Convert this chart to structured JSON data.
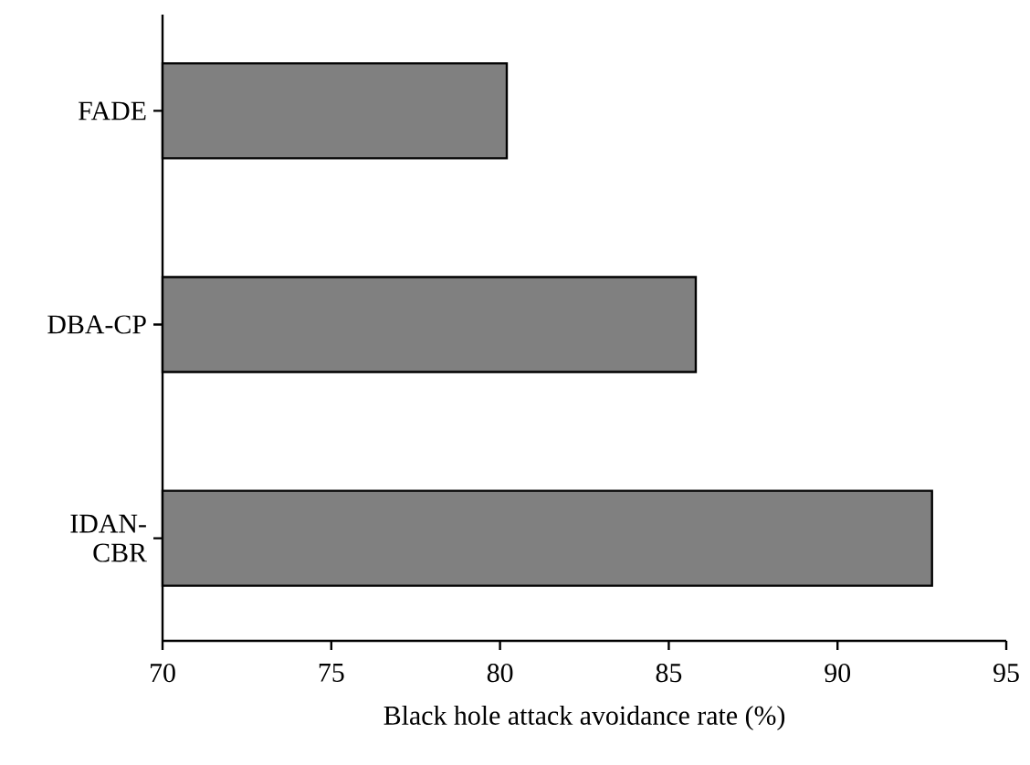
{
  "chart_data": {
    "type": "bar",
    "orientation": "horizontal",
    "categories": [
      "FADE",
      "DBA-CP",
      "IDAN-CBR"
    ],
    "values": [
      80.2,
      85.8,
      92.8
    ],
    "color": "#808080",
    "xlim": [
      70,
      95
    ],
    "xticks": [
      70,
      75,
      80,
      85,
      90,
      95
    ],
    "xlabel": "Black hole attack avoidance rate (%)"
  }
}
